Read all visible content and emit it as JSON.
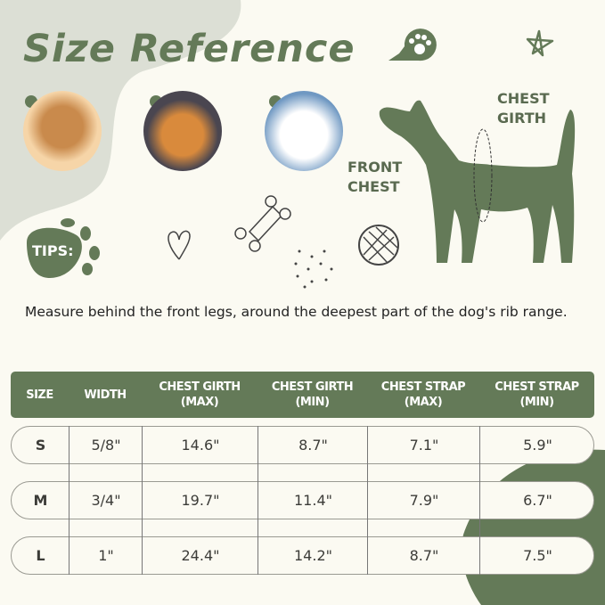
{
  "title": "Size Reference",
  "labels": {
    "chest_girth": [
      "CHEST",
      "GIRTH"
    ],
    "front_chest": [
      "FRONT",
      "CHEST"
    ],
    "tips": "TIPS:"
  },
  "tip_text": "Measure behind the front legs, around the deepest part of the dog's rib range.",
  "colors": {
    "accent": "#647a58",
    "background": "#fbfaf2",
    "blob": "#dcdfd5"
  },
  "table": {
    "headers": [
      [
        "SIZE"
      ],
      [
        "WIDTH"
      ],
      [
        "CHEST GIRTH",
        "(MAX)"
      ],
      [
        "CHEST GIRTH",
        "(MIN)"
      ],
      [
        "CHEST STRAP",
        "(MAX)"
      ],
      [
        "CHEST STRAP",
        "(MIN)"
      ]
    ],
    "rows": [
      [
        "S",
        "5/8\"",
        "14.6\"",
        "8.7\"",
        "7.1\"",
        "5.9\""
      ],
      [
        "M",
        "3/4\"",
        "19.7\"",
        "11.4\"",
        "7.9\"",
        "6.7\""
      ],
      [
        "L",
        "1\"",
        "24.4\"",
        "14.2\"",
        "8.7\"",
        "7.5\""
      ]
    ]
  }
}
